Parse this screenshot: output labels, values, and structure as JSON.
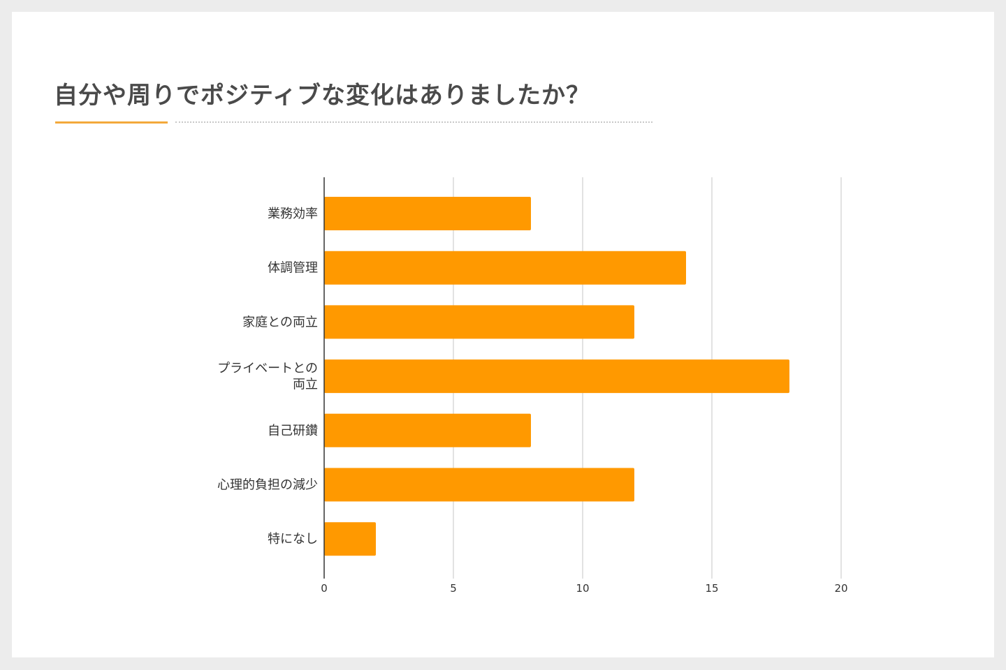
{
  "slide": {
    "title": "自分や周りでポジティブな変化はありましたか？"
  },
  "chart_data": {
    "type": "bar",
    "orientation": "horizontal",
    "categories": [
      [
        "業務効率"
      ],
      [
        "体調管理"
      ],
      [
        "家庭との両立"
      ],
      [
        "プライベートとの",
        "両立"
      ],
      [
        "自己研鑽"
      ],
      [
        "心理的負担の減少"
      ],
      [
        "特になし"
      ]
    ],
    "values": [
      8,
      14,
      12,
      18,
      8,
      12,
      2
    ],
    "xlim": [
      0,
      20
    ],
    "xticks": [
      "0",
      "5",
      "10",
      "15",
      "20"
    ],
    "grid": true,
    "bar_color": "#ff9900",
    "title": "",
    "xlabel": "",
    "ylabel": ""
  }
}
